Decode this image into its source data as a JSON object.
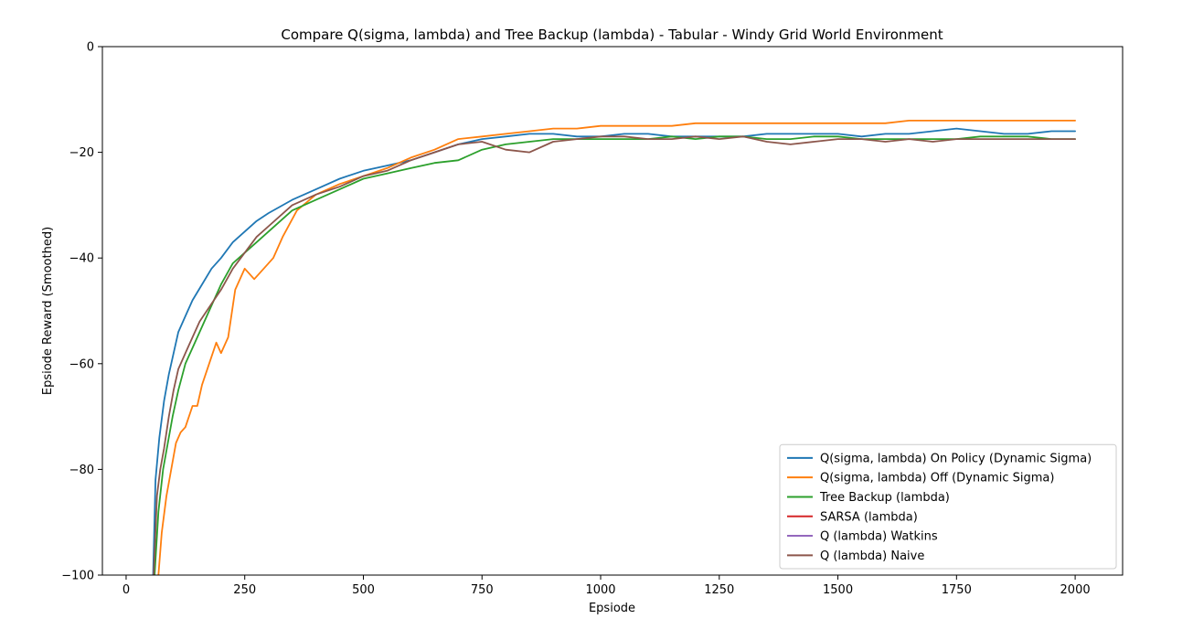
{
  "chart_data": {
    "type": "line",
    "title": "Compare Q(sigma, lambda) and Tree Backup (lambda) - Tabular - Windy Grid World Environment",
    "xlabel": "Epsiode",
    "ylabel": "Epsiode Reward (Smoothed)",
    "xlim": [
      -50,
      2100
    ],
    "ylim": [
      -100,
      0
    ],
    "xticks": [
      0,
      250,
      500,
      750,
      1000,
      1250,
      1500,
      1750,
      2000
    ],
    "yticks": [
      0,
      -20,
      -40,
      -60,
      -80,
      -100
    ],
    "xtick_labels": [
      "0",
      "250",
      "500",
      "750",
      "1000",
      "1250",
      "1500",
      "1750",
      "2000"
    ],
    "ytick_labels": [
      "0",
      "−20",
      "−40",
      "−60",
      "−80",
      "−100"
    ],
    "legend_position": "lower right",
    "grid": false,
    "series": [
      {
        "name": "Q(sigma, lambda) On Policy (Dynamic Sigma)",
        "color": "#1f77b4",
        "x": [
          57,
          62,
          70,
          80,
          90,
          100,
          110,
          125,
          140,
          160,
          180,
          200,
          225,
          250,
          275,
          300,
          350,
          400,
          450,
          500,
          550,
          600,
          650,
          700,
          750,
          800,
          850,
          900,
          950,
          1000,
          1050,
          1100,
          1150,
          1200,
          1250,
          1300,
          1350,
          1400,
          1450,
          1500,
          1550,
          1600,
          1650,
          1700,
          1750,
          1800,
          1850,
          1900,
          1950,
          2000
        ],
        "y": [
          -100,
          -82,
          -74,
          -67,
          -62,
          -58,
          -54,
          -51,
          -48,
          -45,
          -42,
          -40,
          -37,
          -35,
          -33,
          -31.5,
          -29,
          -27,
          -25,
          -23.5,
          -22.5,
          -21.5,
          -20,
          -18.5,
          -17.5,
          -17,
          -16.5,
          -16.5,
          -17,
          -17,
          -16.5,
          -16.5,
          -17,
          -17,
          -17,
          -17,
          -16.5,
          -16.5,
          -16.5,
          -16.5,
          -17,
          -16.5,
          -16.5,
          -16,
          -15.5,
          -16,
          -16.5,
          -16.5,
          -16,
          -16
        ]
      },
      {
        "name": "Q(sigma, lambda) Off (Dynamic Sigma)",
        "color": "#ff7f0e",
        "x": [
          68,
          75,
          85,
          95,
          105,
          115,
          125,
          140,
          150,
          160,
          175,
          190,
          200,
          215,
          230,
          250,
          270,
          290,
          310,
          330,
          360,
          400,
          450,
          500,
          550,
          600,
          650,
          700,
          750,
          800,
          850,
          900,
          950,
          1000,
          1050,
          1100,
          1150,
          1200,
          1250,
          1300,
          1350,
          1400,
          1450,
          1500,
          1550,
          1600,
          1650,
          1700,
          1750,
          1800,
          1850,
          1900,
          1950,
          2000
        ],
        "y": [
          -100,
          -92,
          -85,
          -80,
          -75,
          -73,
          -72,
          -68,
          -68,
          -64,
          -60,
          -56,
          -58,
          -55,
          -46,
          -42,
          -44,
          -42,
          -40,
          -36,
          -31,
          -28,
          -26,
          -24.5,
          -23,
          -21,
          -19.5,
          -17.5,
          -17,
          -16.5,
          -16,
          -15.5,
          -15.5,
          -15,
          -15,
          -15,
          -15,
          -14.5,
          -14.5,
          -14.5,
          -14.5,
          -14.5,
          -14.5,
          -14.5,
          -14.5,
          -14.5,
          -14,
          -14,
          -14,
          -14,
          -14,
          -14,
          -14,
          -14
        ]
      },
      {
        "name": "Tree Backup (lambda)",
        "color": "#2ca02c",
        "x": [
          60,
          68,
          78,
          88,
          98,
          110,
          125,
          140,
          155,
          170,
          185,
          200,
          225,
          250,
          275,
          300,
          350,
          400,
          450,
          500,
          550,
          600,
          650,
          700,
          750,
          800,
          850,
          900,
          950,
          1000,
          1050,
          1100,
          1150,
          1200,
          1250,
          1300,
          1350,
          1400,
          1450,
          1500,
          1550,
          1600,
          1650,
          1700,
          1750,
          1800,
          1850,
          1900,
          1950,
          2000
        ],
        "y": [
          -100,
          -88,
          -80,
          -75,
          -70,
          -65,
          -60,
          -57,
          -54,
          -51,
          -48,
          -45,
          -41,
          -39,
          -37,
          -35,
          -31,
          -29,
          -27,
          -25,
          -24,
          -23,
          -22,
          -21.5,
          -19.5,
          -18.5,
          -18,
          -17.5,
          -17.5,
          -17.5,
          -17.5,
          -17.5,
          -17,
          -17.5,
          -17,
          -17,
          -17.5,
          -17.5,
          -17,
          -17,
          -17.5,
          -17.5,
          -17.5,
          -17.5,
          -17.5,
          -17,
          -17,
          -17,
          -17.5,
          -17.5
        ]
      },
      {
        "name": "SARSA (lambda)",
        "color": "#d62728",
        "x": [],
        "y": []
      },
      {
        "name": "Q (lambda) Watkins",
        "color": "#9467bd",
        "x": [],
        "y": []
      },
      {
        "name": "Q (lambda) Naive",
        "color": "#8c564b",
        "x": [
          58,
          65,
          72,
          80,
          90,
          100,
          110,
          125,
          140,
          155,
          170,
          185,
          200,
          225,
          250,
          275,
          300,
          350,
          400,
          450,
          500,
          550,
          600,
          650,
          700,
          750,
          800,
          850,
          900,
          950,
          1000,
          1050,
          1100,
          1150,
          1200,
          1250,
          1300,
          1350,
          1400,
          1450,
          1500,
          1550,
          1600,
          1650,
          1700,
          1750,
          1800,
          1850,
          1900,
          1950,
          2000
        ],
        "y": [
          -100,
          -85,
          -80,
          -76,
          -70,
          -65,
          -61,
          -58,
          -55,
          -52,
          -50,
          -48,
          -46,
          -42,
          -39,
          -36,
          -34,
          -30,
          -28,
          -26.5,
          -24.5,
          -23.5,
          -21.5,
          -20,
          -18.5,
          -18,
          -19.5,
          -20,
          -18,
          -17.5,
          -17,
          -17,
          -17.5,
          -17.5,
          -17,
          -17.5,
          -17,
          -18,
          -18.5,
          -18,
          -17.5,
          -17.5,
          -18,
          -17.5,
          -18,
          -17.5,
          -17.5,
          -17.5,
          -17.5,
          -17.5,
          -17.5
        ]
      }
    ]
  }
}
